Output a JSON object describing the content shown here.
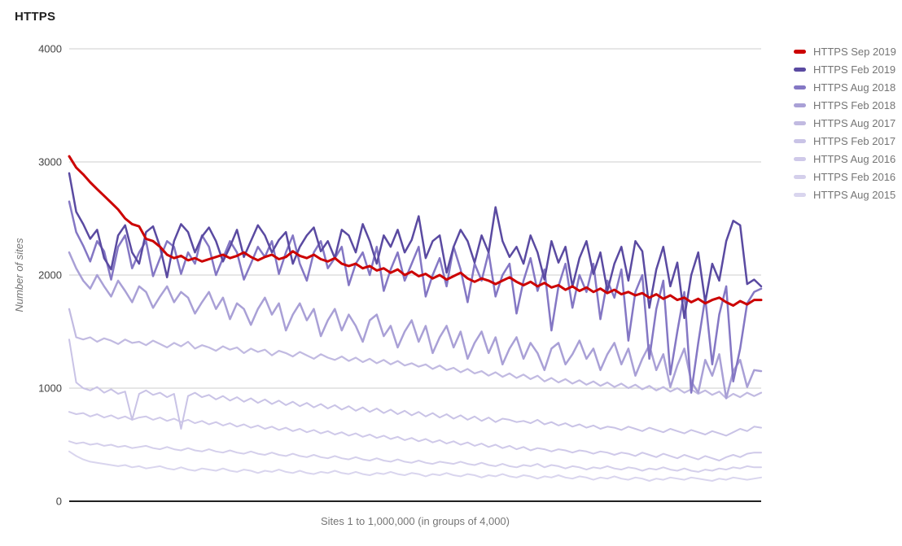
{
  "chart_data": {
    "type": "line",
    "title": "HTTPS",
    "xlabel": "Sites 1 to 1,000,000 (in groups of 4,000)",
    "ylabel": "Number of sites",
    "ylim": [
      0,
      4000
    ],
    "yticks": [
      {
        "value": 4000,
        "label": "4000"
      },
      {
        "value": 3000,
        "label": "3000"
      },
      {
        "value": 2000,
        "label": "2000"
      },
      {
        "value": 1000,
        "label": "1000"
      },
      {
        "value": 0,
        "label": "0"
      }
    ],
    "grid": true,
    "legend_position": "right",
    "colors": {
      "grid_line": "#cccccc",
      "axis_line": "#212121",
      "tick_label": "#424242",
      "axis_title": "#757575",
      "legend_text": "#757575",
      "chart_title": "#212121"
    },
    "series": [
      {
        "name": "HTTPS Sep 2019",
        "color": "#cc0000",
        "stroke_width": 3,
        "values": [
          3050,
          2950,
          2890,
          2820,
          2760,
          2700,
          2640,
          2580,
          2500,
          2450,
          2430,
          2320,
          2300,
          2250,
          2180,
          2150,
          2170,
          2130,
          2150,
          2120,
          2140,
          2160,
          2180,
          2150,
          2170,
          2200,
          2160,
          2130,
          2160,
          2180,
          2140,
          2160,
          2210,
          2170,
          2150,
          2180,
          2140,
          2120,
          2150,
          2100,
          2080,
          2100,
          2060,
          2080,
          2040,
          2060,
          2020,
          2050,
          2000,
          2030,
          1990,
          2010,
          1970,
          2000,
          1960,
          1990,
          2020,
          1970,
          1940,
          1970,
          1950,
          1920,
          1950,
          1980,
          1940,
          1910,
          1940,
          1900,
          1930,
          1890,
          1910,
          1870,
          1900,
          1860,
          1890,
          1850,
          1880,
          1840,
          1870,
          1830,
          1850,
          1820,
          1840,
          1800,
          1830,
          1790,
          1820,
          1780,
          1800,
          1760,
          1790,
          1750,
          1780,
          1800,
          1760,
          1730,
          1770,
          1740,
          1780,
          1780
        ]
      },
      {
        "name": "HTTPS Feb 2019",
        "color": "#5a4aa1",
        "stroke_width": 2.5,
        "values": [
          2900,
          2560,
          2450,
          2320,
          2400,
          2150,
          2050,
          2350,
          2440,
          2200,
          2100,
          2380,
          2430,
          2250,
          1980,
          2300,
          2450,
          2380,
          2200,
          2340,
          2420,
          2300,
          2120,
          2250,
          2400,
          2160,
          2300,
          2440,
          2350,
          2200,
          2310,
          2380,
          2100,
          2250,
          2350,
          2420,
          2210,
          2300,
          2150,
          2400,
          2350,
          2200,
          2450,
          2300,
          2100,
          2350,
          2250,
          2400,
          2200,
          2310,
          2520,
          2150,
          2300,
          2350,
          2020,
          2250,
          2400,
          2300,
          2110,
          2350,
          2200,
          2600,
          2300,
          2160,
          2250,
          2100,
          2350,
          2200,
          1960,
          2300,
          2110,
          2250,
          1900,
          2150,
          2300,
          2010,
          2200,
          1860,
          2100,
          2250,
          1950,
          2300,
          2210,
          1710,
          2050,
          2250,
          1900,
          2110,
          1620,
          2000,
          2200,
          1760,
          2100,
          1950,
          2300,
          2480,
          2440,
          1920,
          1960,
          1900
        ]
      },
      {
        "name": "HTTPS Aug 2018",
        "color": "#8477c4",
        "stroke_width": 2.5,
        "values": [
          2650,
          2380,
          2260,
          2120,
          2300,
          2210,
          1960,
          2250,
          2350,
          2060,
          2200,
          2300,
          1990,
          2150,
          2300,
          2250,
          2010,
          2200,
          2100,
          2350,
          2250,
          2000,
          2150,
          2300,
          2200,
          1960,
          2100,
          2250,
          2160,
          2300,
          2010,
          2200,
          2350,
          2100,
          1950,
          2200,
          2300,
          2060,
          2150,
          2250,
          1910,
          2100,
          2200,
          2000,
          2250,
          1860,
          2050,
          2200,
          1950,
          2100,
          2250,
          1810,
          2000,
          2150,
          1900,
          2250,
          2050,
          1760,
          2100,
          1950,
          2200,
          1810,
          2000,
          2100,
          1660,
          1950,
          2150,
          1860,
          2050,
          1510,
          1900,
          2100,
          1710,
          2000,
          1850,
          2100,
          1610,
          1950,
          1800,
          2050,
          1420,
          1850,
          2000,
          1260,
          1700,
          1950,
          1120,
          1500,
          1850,
          960,
          1400,
          1800,
          1210,
          1650,
          1900,
          1060,
          1350,
          1750,
          1850,
          1880
        ]
      },
      {
        "name": "HTTPS Feb 2018",
        "color": "#a9a0d6",
        "stroke_width": 2.5,
        "values": [
          2200,
          2060,
          1950,
          1880,
          2000,
          1900,
          1810,
          1950,
          1860,
          1760,
          1900,
          1850,
          1710,
          1810,
          1900,
          1760,
          1850,
          1800,
          1660,
          1760,
          1850,
          1700,
          1800,
          1610,
          1750,
          1700,
          1560,
          1700,
          1800,
          1650,
          1750,
          1510,
          1650,
          1750,
          1600,
          1700,
          1460,
          1600,
          1700,
          1510,
          1650,
          1550,
          1410,
          1600,
          1650,
          1460,
          1550,
          1360,
          1500,
          1600,
          1410,
          1550,
          1310,
          1450,
          1550,
          1360,
          1500,
          1260,
          1400,
          1500,
          1310,
          1450,
          1210,
          1350,
          1450,
          1260,
          1400,
          1310,
          1160,
          1350,
          1400,
          1210,
          1300,
          1420,
          1260,
          1350,
          1160,
          1300,
          1400,
          1210,
          1350,
          1110,
          1260,
          1380,
          1160,
          1300,
          1010,
          1200,
          1350,
          1060,
          960,
          1250,
          1110,
          1300,
          910,
          1150,
          1250,
          1010,
          1160,
          1150
        ]
      },
      {
        "name": "HTTPS Aug 2017",
        "color": "#c1bae1",
        "stroke_width": 2.2,
        "values": [
          1700,
          1450,
          1430,
          1450,
          1410,
          1440,
          1420,
          1390,
          1430,
          1400,
          1410,
          1380,
          1420,
          1390,
          1360,
          1400,
          1370,
          1410,
          1350,
          1380,
          1360,
          1330,
          1370,
          1340,
          1360,
          1310,
          1350,
          1320,
          1340,
          1290,
          1330,
          1310,
          1280,
          1320,
          1290,
          1260,
          1300,
          1270,
          1250,
          1280,
          1240,
          1270,
          1230,
          1260,
          1220,
          1250,
          1210,
          1240,
          1200,
          1220,
          1190,
          1210,
          1170,
          1200,
          1160,
          1180,
          1140,
          1170,
          1130,
          1150,
          1110,
          1140,
          1100,
          1130,
          1090,
          1120,
          1080,
          1110,
          1060,
          1090,
          1050,
          1080,
          1040,
          1070,
          1030,
          1060,
          1020,
          1050,
          1010,
          1040,
          1000,
          1030,
          990,
          1020,
          980,
          1010,
          970,
          1000,
          960,
          990,
          950,
          980,
          940,
          970,
          910,
          950,
          920,
          960,
          930,
          960
        ]
      },
      {
        "name": "HTTPS Feb 2017",
        "color": "#c9c3e6",
        "stroke_width": 2,
        "values": [
          1430,
          1050,
          1000,
          980,
          1010,
          960,
          990,
          950,
          970,
          720,
          950,
          980,
          940,
          960,
          920,
          950,
          640,
          930,
          960,
          920,
          940,
          900,
          930,
          890,
          920,
          880,
          910,
          870,
          900,
          860,
          890,
          850,
          880,
          840,
          870,
          830,
          860,
          820,
          850,
          810,
          840,
          800,
          830,
          790,
          820,
          780,
          810,
          770,
          800,
          760,
          790,
          750,
          780,
          740,
          770,
          730,
          760,
          720,
          750,
          710,
          740,
          700,
          730,
          720,
          700,
          710,
          690,
          720,
          680,
          700,
          670,
          690,
          660,
          680,
          650,
          670,
          640,
          660,
          650,
          630,
          660,
          640,
          620,
          650,
          630,
          610,
          640,
          620,
          600,
          630,
          610,
          590,
          620,
          600,
          580,
          610,
          640,
          620,
          660,
          650
        ]
      },
      {
        "name": "HTTPS Aug 2016",
        "color": "#cfc9e9",
        "stroke_width": 2,
        "values": [
          790,
          770,
          780,
          750,
          770,
          740,
          760,
          730,
          750,
          720,
          740,
          750,
          720,
          740,
          710,
          730,
          700,
          720,
          690,
          710,
          680,
          700,
          670,
          690,
          660,
          680,
          650,
          670,
          640,
          660,
          630,
          650,
          620,
          640,
          610,
          630,
          600,
          620,
          590,
          610,
          580,
          600,
          570,
          590,
          560,
          580,
          550,
          570,
          540,
          560,
          530,
          550,
          520,
          540,
          510,
          530,
          500,
          520,
          490,
          510,
          480,
          500,
          470,
          490,
          460,
          480,
          450,
          470,
          460,
          440,
          460,
          450,
          430,
          450,
          440,
          420,
          440,
          430,
          410,
          430,
          420,
          400,
          430,
          410,
          390,
          420,
          400,
          380,
          410,
          390,
          370,
          400,
          380,
          360,
          390,
          410,
          390,
          420,
          430,
          430
        ]
      },
      {
        "name": "HTTPS Feb 2016",
        "color": "#d4cfeb",
        "stroke_width": 2,
        "values": [
          530,
          510,
          520,
          500,
          510,
          490,
          500,
          480,
          490,
          470,
          480,
          490,
          470,
          460,
          480,
          460,
          450,
          470,
          450,
          440,
          460,
          440,
          430,
          450,
          430,
          420,
          440,
          420,
          410,
          430,
          410,
          400,
          420,
          400,
          390,
          410,
          390,
          380,
          400,
          380,
          370,
          390,
          370,
          360,
          380,
          360,
          350,
          370,
          350,
          340,
          360,
          340,
          330,
          350,
          340,
          330,
          350,
          330,
          320,
          340,
          320,
          310,
          330,
          310,
          300,
          320,
          310,
          330,
          300,
          320,
          310,
          290,
          310,
          300,
          280,
          300,
          290,
          310,
          290,
          280,
          300,
          290,
          270,
          290,
          280,
          300,
          280,
          270,
          290,
          270,
          260,
          280,
          270,
          290,
          280,
          300,
          290,
          310,
          300,
          300
        ]
      },
      {
        "name": "HTTPS Aug 2015",
        "color": "#d9d5ee",
        "stroke_width": 2,
        "values": [
          440,
          400,
          370,
          350,
          340,
          330,
          320,
          310,
          320,
          300,
          310,
          290,
          300,
          310,
          290,
          280,
          300,
          280,
          270,
          290,
          280,
          270,
          290,
          270,
          260,
          280,
          270,
          250,
          270,
          260,
          280,
          260,
          250,
          270,
          250,
          240,
          260,
          250,
          270,
          250,
          240,
          260,
          240,
          230,
          250,
          240,
          260,
          240,
          230,
          250,
          240,
          220,
          240,
          230,
          250,
          230,
          220,
          240,
          230,
          210,
          230,
          220,
          240,
          220,
          210,
          230,
          220,
          200,
          220,
          210,
          230,
          210,
          200,
          220,
          210,
          190,
          210,
          200,
          220,
          200,
          190,
          210,
          200,
          180,
          200,
          190,
          210,
          200,
          190,
          210,
          200,
          190,
          180,
          200,
          190,
          210,
          200,
          190,
          200,
          210
        ]
      }
    ]
  }
}
